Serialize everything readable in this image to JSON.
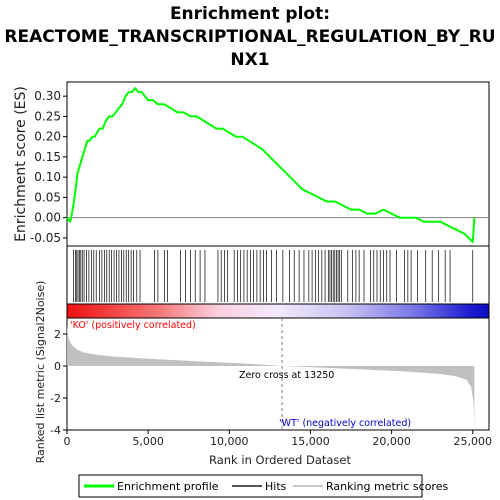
{
  "chart_data": {
    "type": "line",
    "title": "Enrichment plot: REACTOME_TRANSCRIPTIONAL_REGULATION_BY_RUNX1",
    "title_lines": [
      "Enrichment plot:",
      "REACTOME_TRANSCRIPTIONAL_REGULATION_BY_RU",
      "NX1"
    ],
    "xlabel": "Rank in Ordered Dataset",
    "ylabel_top": "Enrichment score (ES)",
    "ylabel_bottom": "Ranked list metric (Signal2Noise)",
    "xlim": [
      0,
      26000
    ],
    "es_ylim": [
      -0.07,
      0.335
    ],
    "metric_ylim": [
      -4,
      3
    ],
    "x_ticks": [
      0,
      5000,
      10000,
      15000,
      20000,
      25000
    ],
    "x_tick_labels": [
      "0",
      "5,000",
      "10,000",
      "15,000",
      "20,000",
      "25,000"
    ],
    "es_y_ticks": [
      -0.05,
      0.0,
      0.05,
      0.1,
      0.15,
      0.2,
      0.25,
      0.3
    ],
    "es_y_tick_labels": [
      "-0.05",
      "0.00",
      "0.05",
      "0.10",
      "0.15",
      "0.20",
      "0.25",
      "0.30"
    ],
    "metric_y_ticks": [
      2,
      0,
      -2,
      -4
    ],
    "metric_y_tick_labels": [
      "2",
      "0",
      "-2",
      "-4"
    ],
    "enrichment_profile": {
      "x": [
        0,
        200,
        350,
        500,
        650,
        800,
        950,
        1100,
        1250,
        1400,
        1550,
        1700,
        1850,
        2000,
        2200,
        2400,
        2600,
        2800,
        3000,
        3200,
        3400,
        3600,
        3800,
        4000,
        4200,
        4400,
        4600,
        4800,
        5000,
        5300,
        5600,
        6000,
        6400,
        6800,
        7200,
        7600,
        8000,
        8400,
        8800,
        9200,
        9600,
        10000,
        10400,
        10800,
        11200,
        11600,
        12000,
        12500,
        13000,
        13500,
        14000,
        14500,
        15000,
        15500,
        16000,
        16500,
        17000,
        17500,
        18000,
        18500,
        19000,
        19500,
        20000,
        20500,
        21000,
        21500,
        22000,
        22500,
        23000,
        23500,
        24000,
        24500,
        25000,
        25100
      ],
      "y": [
        0.0,
        -0.01,
        0.02,
        0.06,
        0.11,
        0.13,
        0.15,
        0.17,
        0.19,
        0.19,
        0.2,
        0.2,
        0.21,
        0.22,
        0.22,
        0.24,
        0.25,
        0.25,
        0.26,
        0.27,
        0.28,
        0.3,
        0.31,
        0.31,
        0.32,
        0.31,
        0.31,
        0.3,
        0.29,
        0.29,
        0.28,
        0.28,
        0.27,
        0.26,
        0.26,
        0.25,
        0.25,
        0.24,
        0.23,
        0.22,
        0.22,
        0.21,
        0.2,
        0.2,
        0.19,
        0.18,
        0.17,
        0.15,
        0.13,
        0.11,
        0.09,
        0.07,
        0.06,
        0.05,
        0.04,
        0.04,
        0.03,
        0.02,
        0.02,
        0.01,
        0.01,
        0.02,
        0.01,
        0.0,
        0.0,
        0.0,
        -0.01,
        -0.01,
        -0.01,
        -0.02,
        -0.03,
        -0.04,
        -0.06,
        0.0
      ]
    },
    "hits": [
      400,
      520,
      600,
      680,
      760,
      850,
      940,
      1050,
      1200,
      1350,
      1500,
      1650,
      1800,
      2000,
      2150,
      2300,
      2450,
      2600,
      2750,
      2900,
      3050,
      3200,
      3350,
      3500,
      3650,
      3800,
      3950,
      4100,
      4300,
      4500,
      5400,
      5600,
      6000,
      6200,
      7000,
      7300,
      7600,
      7900,
      8200,
      8500,
      9300,
      9500,
      9700,
      9900,
      10300,
      10500,
      10700,
      10900,
      11100,
      11300,
      11500,
      11700,
      11900,
      12100,
      12300,
      12600,
      12900,
      13300,
      13700,
      14000,
      14300,
      14600,
      14900,
      15100,
      15300,
      15500,
      15700,
      15900,
      16100,
      16200,
      16300,
      16400,
      16500,
      16600,
      16700,
      16800,
      16900,
      17300,
      17600,
      17800,
      18000,
      18300,
      18700,
      18900,
      19100,
      19300,
      19500,
      19700,
      19900,
      20300,
      20800,
      21000,
      21200,
      21600,
      22100,
      22500,
      22900,
      23300,
      23600,
      25000
    ],
    "metric_curve": {
      "x": [
        0,
        100,
        300,
        600,
        1000,
        2000,
        3000,
        5000,
        8000,
        11000,
        13250,
        16000,
        19000,
        21000,
        23000,
        24000,
        24600,
        24900,
        25050,
        25100
      ],
      "y": [
        2.5,
        1.7,
        1.3,
        1.05,
        0.85,
        0.68,
        0.58,
        0.45,
        0.3,
        0.15,
        0.0,
        -0.12,
        -0.25,
        -0.35,
        -0.5,
        -0.65,
        -0.85,
        -1.3,
        -2.3,
        -3.8
      ]
    },
    "zero_cross_label": "Zero cross at 13250",
    "zero_cross_x": 13250,
    "ko_label": "'KO' (positively correlated)",
    "wt_label": "'WT' (negatively correlated)",
    "legend": {
      "placement": "bottom",
      "items": [
        "Enrichment profile",
        "Hits",
        "Ranking metric scores"
      ]
    },
    "colors": {
      "profile": "#00ff00",
      "hits": "#000000",
      "metric_fill": "#c0c0c0",
      "ko_text": "#ff0000",
      "wt_text": "#0000cc",
      "zero_line": "#808080"
    }
  }
}
